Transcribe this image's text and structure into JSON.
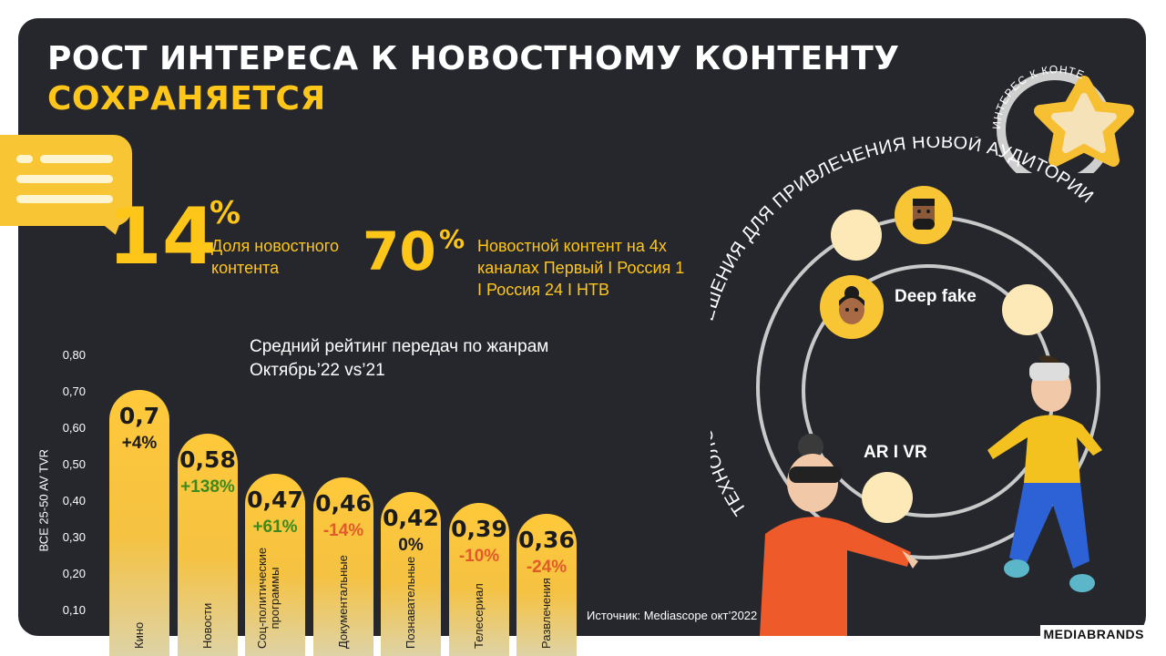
{
  "title": {
    "line1": "РОСТ ИНТЕРЕСА К НОВОСТНОМУ КОНТЕНТУ",
    "line2": "СОХРАНЯЕТСЯ"
  },
  "stats": [
    {
      "number": "14",
      "unit": "%",
      "label": "Доля новостного\nконтента"
    },
    {
      "number": "70",
      "unit": "%",
      "label": "Новостной контент на 4х\nканалах Первый I Россия 1\nI Россия 24 I НТВ"
    }
  ],
  "badge_arc_text": "ИНТЕРЕС К КОНТЕНТУ",
  "tech_arc_text": "ТЕХНОЛОГИЧЕСКИ РЕШЕНИЯ ДЛЯ ПРИВЛЕЧЕНИЯ НОВОЙ АУДИТОРИИ",
  "tech_labels": {
    "deepfake": "Deep fake",
    "arvr": "AR I VR"
  },
  "chart_data": {
    "type": "bar",
    "title": "Средний рейтинг передач по жанрам\nОктябрь’22 vs’21",
    "ylabel": "ВСЕ 25-50  AV TVR",
    "ylim": [
      0,
      0.8
    ],
    "yticks": [
      "0,80",
      "0,70",
      "0,60",
      "0,50",
      "0,40",
      "0,30",
      "0,20",
      "0,10"
    ],
    "categories": [
      "Кино",
      "Новости",
      "Соц-политические\nпрограммы",
      "Документальные",
      "Познавательные",
      "Телесериал",
      "Развлечения"
    ],
    "values": [
      0.7,
      0.58,
      0.47,
      0.46,
      0.42,
      0.39,
      0.36
    ],
    "value_labels": [
      "0,7",
      "0,58",
      "0,47",
      "0,46",
      "0,42",
      "0,39",
      "0,36"
    ],
    "changes": [
      "+4%",
      "+138%",
      "+61%",
      "-14%",
      "0%",
      "-10%",
      "-24%"
    ],
    "change_colors": [
      "#1b1b1b",
      "#3c8a1e",
      "#3c8a1e",
      "#e25a2a",
      "#1b1b1b",
      "#e25a2a",
      "#e25a2a"
    ]
  },
  "source": "Источник: Mediascope окт’2022",
  "brand": "MEDIABRANDS"
}
